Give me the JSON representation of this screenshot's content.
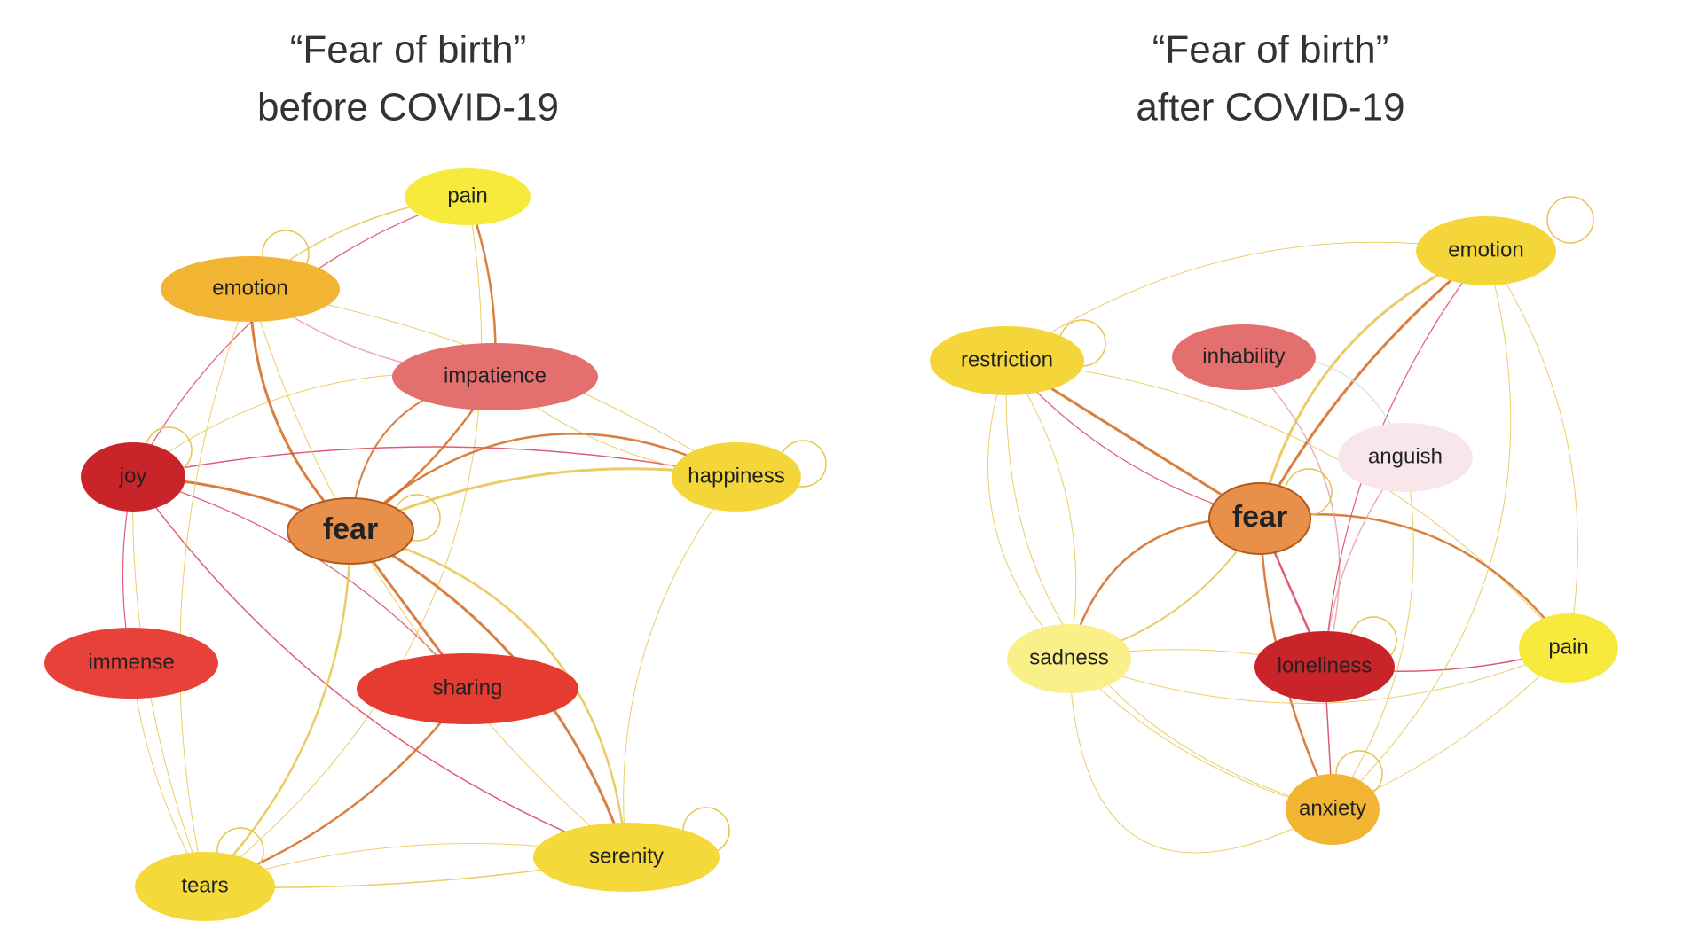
{
  "graphs": [
    {
      "title": [
        "“Fear of birth”",
        "before COVID-19"
      ],
      "nodes": [
        {
          "label": "pain"
        },
        {
          "label": "emotion"
        },
        {
          "label": "impatience"
        },
        {
          "label": "joy"
        },
        {
          "label": "happiness"
        },
        {
          "label": "fear"
        },
        {
          "label": "immense"
        },
        {
          "label": "sharing"
        },
        {
          "label": "tears"
        },
        {
          "label": "serenity"
        }
      ]
    },
    {
      "title": [
        "“Fear of birth”",
        "after COVID-19"
      ],
      "nodes": [
        {
          "label": "emotion"
        },
        {
          "label": "restriction"
        },
        {
          "label": "inhability"
        },
        {
          "label": "anguish"
        },
        {
          "label": "fear"
        },
        {
          "label": "sadness"
        },
        {
          "label": "loneliness"
        },
        {
          "label": "pain"
        },
        {
          "label": "anxiety"
        }
      ]
    }
  ]
}
